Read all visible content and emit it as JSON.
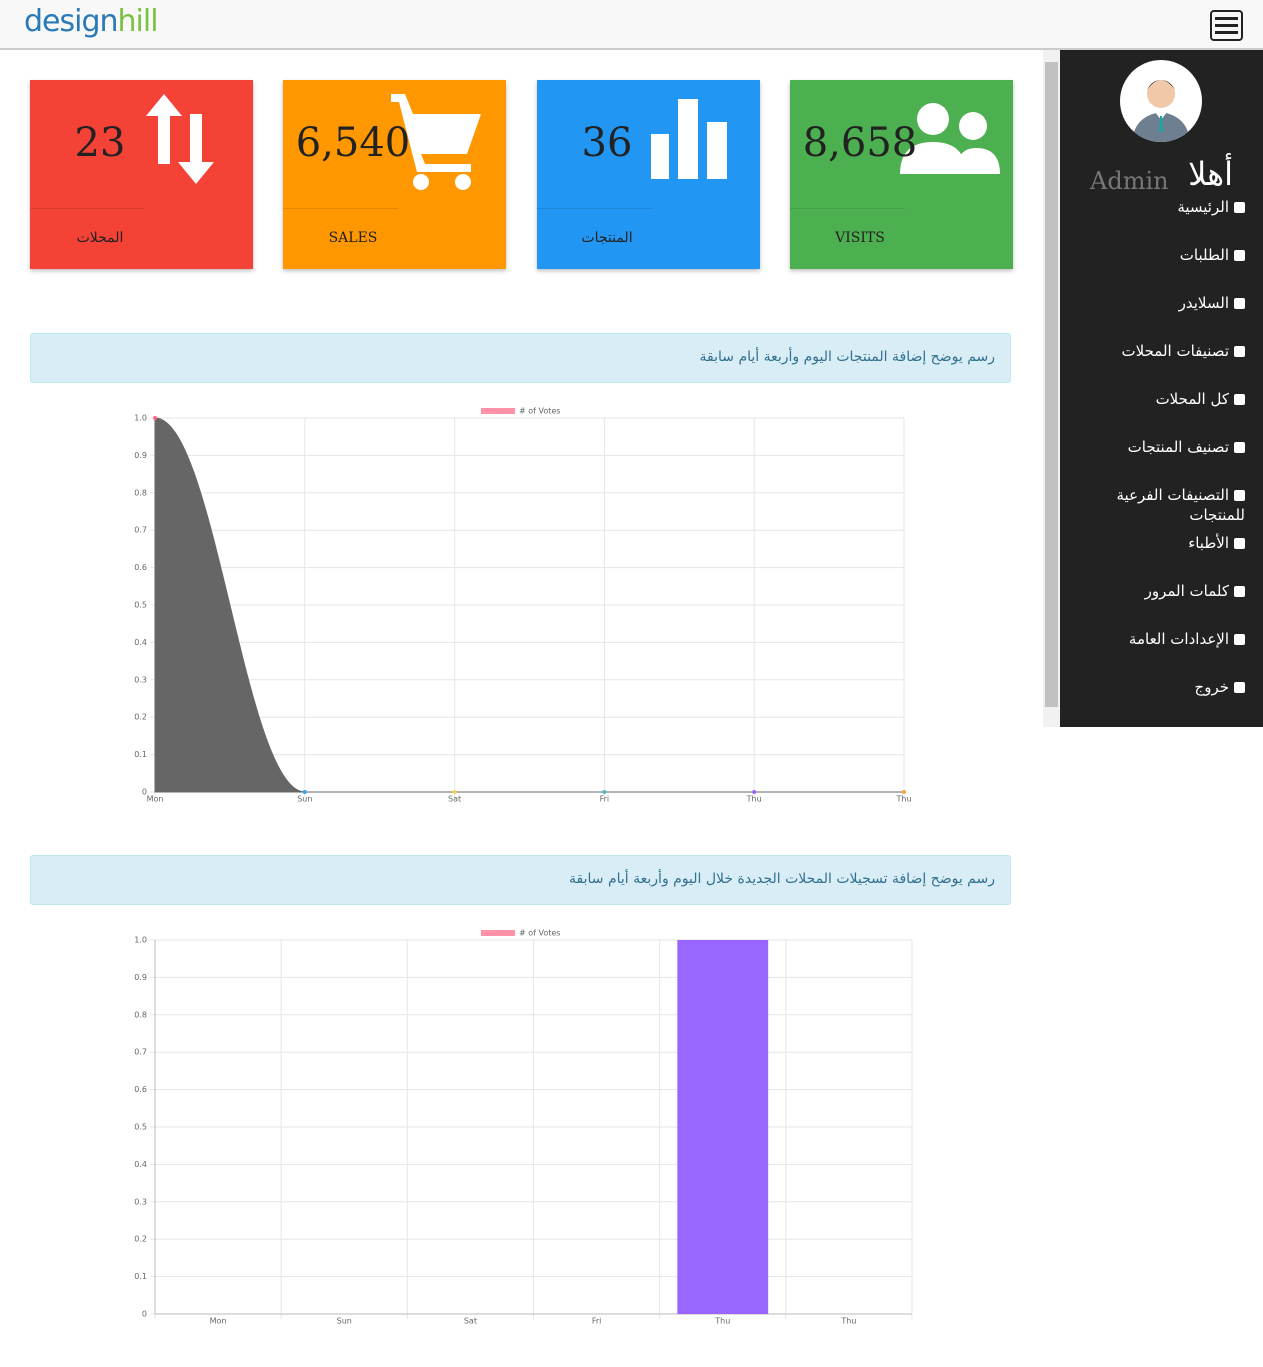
{
  "header": {
    "logo_a": "design",
    "logo_b": "hill"
  },
  "cards": [
    {
      "value": "23",
      "label": "المحلات",
      "color": "#f44336"
    },
    {
      "value": "6,540",
      "label": "SALES",
      "color": "#ff9800"
    },
    {
      "value": "36",
      "label": "المنتجات",
      "color": "#2196f3"
    },
    {
      "value": "8,658",
      "label": "VISITS",
      "color": "#4caf50"
    }
  ],
  "sidebar": {
    "welcome": "أهلا",
    "user": "Admin",
    "menu": [
      "الرئيسية",
      "الطلبات",
      "السلايدر",
      "تصنيفات المحلات",
      "كل المحلات",
      "تصنيف المنتجات",
      "التصنيفات الفرعية للمنتجات",
      "الأطباء",
      "كلمات المرور",
      "الإعدادات العامة",
      "خروج"
    ]
  },
  "panels": [
    "رسم يوضح إضافة المنتجات اليوم وأربعة أيام سابقة",
    "رسم يوضح إضافة تسجيلات المحلات الجديدة خلال اليوم وأربعة أيام سابقة"
  ],
  "chart_data": [
    {
      "type": "line",
      "categories": [
        "Mon",
        "Sun",
        "Sat",
        "Fri",
        "Thu",
        "Thu"
      ],
      "series": [
        {
          "name": "# of Votes",
          "color": "#666666",
          "values": [
            1,
            0,
            0,
            0,
            0,
            0
          ]
        }
      ],
      "ylim": [
        0,
        1
      ],
      "yticks": [
        0,
        0.1,
        0.2,
        0.3,
        0.4,
        0.5,
        0.6,
        0.7,
        0.8,
        0.9,
        {
          "value": 1,
          "label": "1.0"
        }
      ],
      "grid": true
    },
    {
      "type": "bar",
      "categories": [
        "Mon",
        "Sun",
        "Sat",
        "Fri",
        "Thu",
        "Thu"
      ],
      "series": [
        {
          "name": "# of Votes",
          "color": "#9966ff",
          "values": [
            0,
            0,
            0,
            0,
            1,
            0
          ]
        }
      ],
      "ylim": [
        0,
        1
      ],
      "yticks": [
        0,
        0.1,
        0.2,
        0.3,
        0.4,
        0.5,
        0.6,
        0.7,
        0.8,
        0.9,
        {
          "value": 1,
          "label": "1.0"
        }
      ],
      "grid": true
    }
  ]
}
